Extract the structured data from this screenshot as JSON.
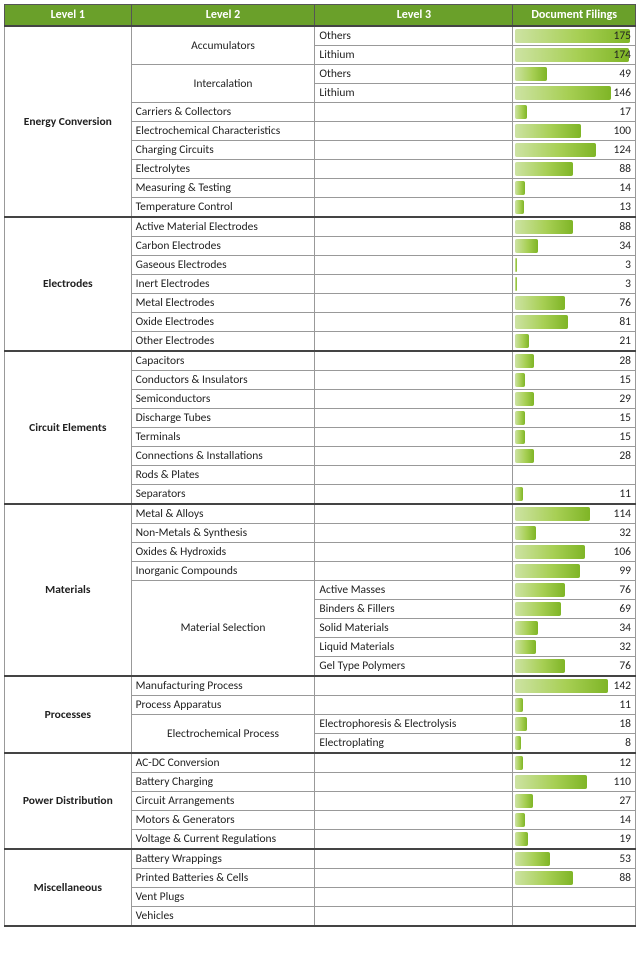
{
  "headers": {
    "l1": "Level 1",
    "l2": "Level 2",
    "l3": "Level 3",
    "val": "Document Filings"
  },
  "style": {
    "header_bg": "#6aa02a",
    "header_fg": "#ffffff",
    "bar_grad_start": "#cde3a3",
    "bar_grad_mid": "#a7cf54",
    "bar_grad_end": "#7fb526",
    "bar_max_value": 180,
    "border_color": "#999999"
  },
  "sections": [
    {
      "l1": "Energy Conversion",
      "rows": [
        {
          "l2": "Accumulators",
          "l2_span": 2,
          "l2_center": true,
          "l3": "Others",
          "val": 175
        },
        {
          "l3": "Lithium",
          "val": 174
        },
        {
          "l2": "Intercalation",
          "l2_span": 2,
          "l2_center": true,
          "l3": "Others",
          "val": 49
        },
        {
          "l3": "Lithium",
          "val": 146
        },
        {
          "l2": "Carriers & Collectors",
          "l3": "",
          "val": 17
        },
        {
          "l2": "Electrochemical Characteristics",
          "l3": "",
          "val": 100
        },
        {
          "l2": "Charging Circuits",
          "l3": "",
          "val": 124
        },
        {
          "l2": "Electrolytes",
          "l3": "",
          "val": 88
        },
        {
          "l2": "Measuring & Testing",
          "l3": "",
          "val": 14
        },
        {
          "l2": "Temperature Control",
          "l3": "",
          "val": 13
        }
      ]
    },
    {
      "l1": "Electrodes",
      "rows": [
        {
          "l2": "Active Material Electrodes",
          "l3": "",
          "val": 88
        },
        {
          "l2": "Carbon Electrodes",
          "l3": "",
          "val": 34
        },
        {
          "l2": "Gaseous Electrodes",
          "l3": "",
          "val": 3
        },
        {
          "l2": "Inert Electrodes",
          "l3": "",
          "val": 3
        },
        {
          "l2": "Metal Electrodes",
          "l3": "",
          "val": 76
        },
        {
          "l2": "Oxide Electrodes",
          "l3": "",
          "val": 81
        },
        {
          "l2": "Other Electrodes",
          "l3": "",
          "val": 21
        }
      ]
    },
    {
      "l1": "Circuit Elements",
      "rows": [
        {
          "l2": "Capacitors",
          "l3": "",
          "val": 28
        },
        {
          "l2": "Conductors & Insulators",
          "l3": "",
          "val": 15
        },
        {
          "l2": "Semiconductors",
          "l3": "",
          "val": 29
        },
        {
          "l2": "Discharge Tubes",
          "l3": "",
          "val": 15
        },
        {
          "l2": "Terminals",
          "l3": "",
          "val": 15
        },
        {
          "l2": "Connections & Installations",
          "l3": "",
          "val": 28
        },
        {
          "l2": "Rods & Plates",
          "l3": "",
          "val": null
        },
        {
          "l2": "Separators",
          "l3": "",
          "val": 11
        }
      ]
    },
    {
      "l1": "Materials",
      "rows": [
        {
          "l2": "Metal & Alloys",
          "l3": "",
          "val": 114
        },
        {
          "l2": "Non-Metals & Synthesis",
          "l3": "",
          "val": 32
        },
        {
          "l2": "Oxides & Hydroxids",
          "l3": "",
          "val": 106
        },
        {
          "l2": "Inorganic Compounds",
          "l3": "",
          "val": 99
        },
        {
          "l2": "Material Selection",
          "l2_span": 5,
          "l2_center": true,
          "l3": "Active Masses",
          "val": 76
        },
        {
          "l3": "Binders & Fillers",
          "val": 69
        },
        {
          "l3": "Solid Materials",
          "val": 34
        },
        {
          "l3": "Liquid Materials",
          "val": 32
        },
        {
          "l3": "Gel Type Polymers",
          "val": 76
        }
      ]
    },
    {
      "l1": "Processes",
      "rows": [
        {
          "l2": "Manufacturing Process",
          "l3": "",
          "val": 142
        },
        {
          "l2": "Process Apparatus",
          "l3": "",
          "val": 11
        },
        {
          "l2": "Electrochemical Process",
          "l2_span": 2,
          "l2_center": true,
          "l3": "Electrophoresis & Electrolysis",
          "val": 18
        },
        {
          "l3": "Electroplating",
          "val": 8
        }
      ]
    },
    {
      "l1": "Power Distribution",
      "rows": [
        {
          "l2": "AC-DC Conversion",
          "l3": "",
          "val": 12
        },
        {
          "l2": "Battery Charging",
          "l3": "",
          "val": 110
        },
        {
          "l2": "Circuit Arrangements",
          "l3": "",
          "val": 27
        },
        {
          "l2": "Motors & Generators",
          "l3": "",
          "val": 14
        },
        {
          "l2": "Voltage & Current Regulations",
          "l3": "",
          "val": 19
        }
      ]
    },
    {
      "l1": "Miscellaneous",
      "rows": [
        {
          "l2": "Battery Wrappings",
          "l3": "",
          "val": 53
        },
        {
          "l2": "Printed Batteries & Cells",
          "l3": "",
          "val": 88
        },
        {
          "l2": "Vent Plugs",
          "l3": "",
          "val": null
        },
        {
          "l2": "Vehicles",
          "l3": "",
          "val": null
        }
      ]
    }
  ]
}
